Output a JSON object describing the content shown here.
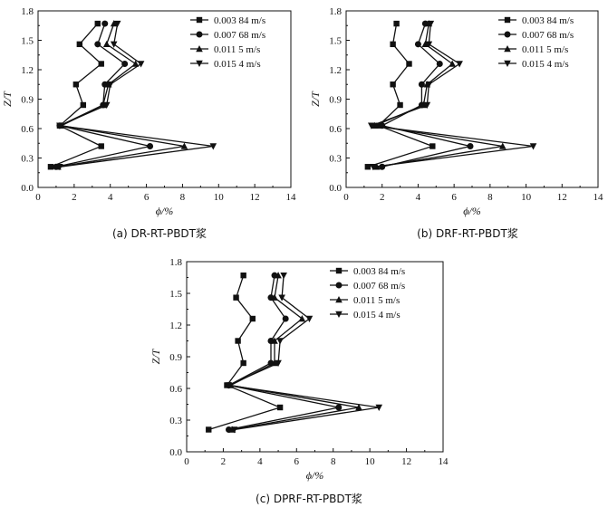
{
  "colors": {
    "ink": "#111111",
    "background": "#ffffff"
  },
  "chart_data": [
    {
      "type": "line",
      "caption": "(a) DR-RT-PBDT浆",
      "xlabel": "ϕ/%",
      "ylabel": "Z/T",
      "xlim": [
        0,
        14
      ],
      "ylim": [
        0,
        1.8
      ],
      "xticks": [
        "0",
        "2",
        "4",
        "6",
        "8",
        "10",
        "12",
        "14"
      ],
      "yticks": [
        "0.0",
        "0.3",
        "0.6",
        "0.9",
        "1.2",
        "1.5",
        "1.8"
      ],
      "legend_position": "top-right",
      "y": [
        0.21,
        0.42,
        0.63,
        0.84,
        1.05,
        1.26,
        1.46,
        1.67
      ],
      "series": [
        {
          "name": "0.003 84 m/s",
          "marker": "square",
          "x": [
            0.7,
            3.5,
            1.2,
            2.5,
            2.1,
            3.5,
            2.3,
            3.3
          ]
        },
        {
          "name": "0.007 68 m/s",
          "marker": "circle",
          "x": [
            1.0,
            6.2,
            1.2,
            3.6,
            3.7,
            4.8,
            3.3,
            3.7
          ]
        },
        {
          "name": "0.011 5 m/s",
          "marker": "triangle-up",
          "x": [
            1.1,
            8.1,
            1.3,
            3.6,
            3.9,
            5.4,
            3.8,
            4.2
          ]
        },
        {
          "name": "0.015 4 m/s",
          "marker": "triangle-down",
          "x": [
            1.2,
            9.7,
            1.2,
            3.8,
            4.0,
            5.7,
            4.2,
            4.4
          ]
        }
      ]
    },
    {
      "type": "line",
      "caption": "(b) DRF-RT-PBDT浆",
      "xlabel": "ϕ/%",
      "ylabel": "Z/T",
      "xlim": [
        0,
        14
      ],
      "ylim": [
        0,
        1.8
      ],
      "xticks": [
        "0",
        "2",
        "4",
        "6",
        "8",
        "10",
        "12",
        "14"
      ],
      "yticks": [
        "0.0",
        "0.3",
        "0.6",
        "0.9",
        "1.2",
        "1.5",
        "1.8"
      ],
      "legend_position": "top-right",
      "y": [
        0.21,
        0.42,
        0.63,
        0.84,
        1.05,
        1.26,
        1.46,
        1.67
      ],
      "series": [
        {
          "name": "0.003 84 m/s",
          "marker": "square",
          "x": [
            1.2,
            4.8,
            1.8,
            3.0,
            2.6,
            3.5,
            2.6,
            2.8
          ]
        },
        {
          "name": "0.007 68 m/s",
          "marker": "circle",
          "x": [
            2.0,
            6.9,
            2.0,
            4.2,
            4.2,
            5.2,
            4.0,
            4.4
          ]
        },
        {
          "name": "0.011 5 m/s",
          "marker": "triangle-up",
          "x": [
            1.7,
            8.7,
            1.6,
            4.3,
            4.5,
            5.9,
            4.4,
            4.6
          ]
        },
        {
          "name": "0.015 4 m/s",
          "marker": "triangle-down",
          "x": [
            1.5,
            10.4,
            1.4,
            4.5,
            4.6,
            6.3,
            4.6,
            4.7
          ]
        }
      ]
    },
    {
      "type": "line",
      "caption": "(c) DPRF-RT-PBDT浆",
      "xlabel": "ϕ/%",
      "ylabel": "Z/T",
      "xlim": [
        0,
        14
      ],
      "ylim": [
        0,
        1.8
      ],
      "xticks": [
        "0",
        "2",
        "4",
        "6",
        "8",
        "10",
        "12",
        "14"
      ],
      "yticks": [
        "0.0",
        "0.3",
        "0.6",
        "0.9",
        "1.2",
        "1.5",
        "1.8"
      ],
      "legend_position": "top-right",
      "y": [
        0.21,
        0.42,
        0.63,
        0.84,
        1.05,
        1.26,
        1.46,
        1.67
      ],
      "series": [
        {
          "name": "0.003 84 m/s",
          "marker": "square",
          "x": [
            1.2,
            5.1,
            2.2,
            3.1,
            2.8,
            3.6,
            2.7,
            3.1
          ]
        },
        {
          "name": "0.007 68 m/s",
          "marker": "circle",
          "x": [
            2.3,
            8.3,
            2.3,
            4.6,
            4.6,
            5.4,
            4.6,
            4.8
          ]
        },
        {
          "name": "0.011 5 m/s",
          "marker": "triangle-up",
          "x": [
            2.5,
            9.4,
            2.4,
            4.8,
            4.8,
            6.3,
            4.8,
            5.0
          ]
        },
        {
          "name": "0.015 4 m/s",
          "marker": "triangle-down",
          "x": [
            2.6,
            10.5,
            2.3,
            5.0,
            5.1,
            6.7,
            5.2,
            5.3
          ]
        }
      ]
    }
  ]
}
